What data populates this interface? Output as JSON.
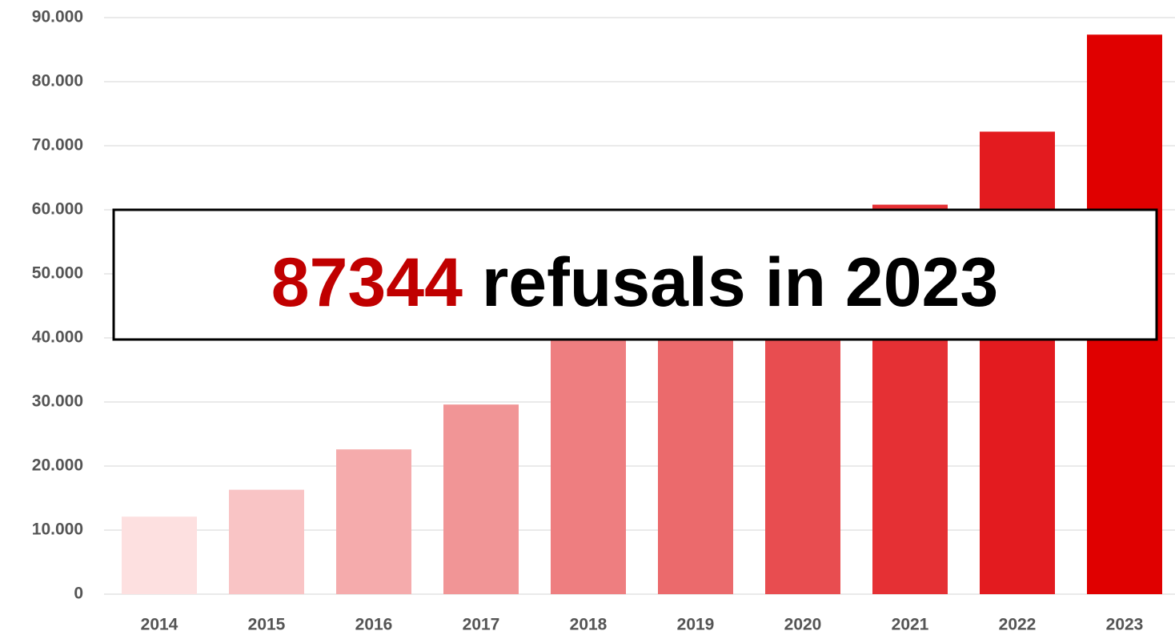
{
  "chart_data": {
    "type": "bar",
    "categories": [
      "2014",
      "2015",
      "2016",
      "2017",
      "2018",
      "2019",
      "2020",
      "2021",
      "2022",
      "2023"
    ],
    "values": [
      12100,
      16300,
      22600,
      29600,
      42000,
      45000,
      48000,
      60800,
      72200,
      87344
    ],
    "colors": [
      "#fde0e0",
      "#f9c4c5",
      "#f5abac",
      "#f19596",
      "#ee7e80",
      "#eb6a6c",
      "#e84d50",
      "#e53034",
      "#e31b1f",
      "#e00000"
    ],
    "ylim": [
      0,
      90000
    ],
    "yticks": [
      0,
      {
        "value": 10000,
        "label": "10.000"
      },
      {
        "value": 20000,
        "label": "20.000"
      },
      {
        "value": 30000,
        "label": "30.000"
      },
      {
        "value": 40000,
        "label": "40.000"
      },
      {
        "value": 50000,
        "label": "50.000"
      },
      {
        "value": 60000,
        "label": "60.000"
      },
      {
        "value": 70000,
        "label": "70.000"
      },
      {
        "value": 80000,
        "label": "80.000"
      },
      {
        "value": 90000,
        "label": "90.000"
      }
    ],
    "grid": true,
    "annotation": {
      "highlight": "87344",
      "text": "refusals in 2023",
      "highlight_color": "#c00000"
    }
  }
}
